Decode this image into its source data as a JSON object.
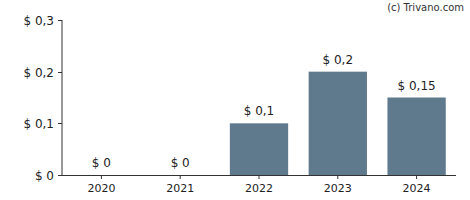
{
  "chart_data": {
    "type": "bar",
    "annotation": "(c) Trivano.com",
    "categories": [
      "2020",
      "2021",
      "2022",
      "2023",
      "2024"
    ],
    "values": [
      0,
      0,
      0.1,
      0.2,
      0.15
    ],
    "value_labels": [
      "$ 0",
      "$ 0",
      "$ 0,1",
      "$ 0,2",
      "$ 0,15"
    ],
    "data_labels": true,
    "color": "#5f7a8d",
    "ylim": [
      0,
      0.3
    ],
    "yticks": [
      {
        "value": 0,
        "label": "$ 0"
      },
      {
        "value": 0.1,
        "label": "$ 0,1"
      },
      {
        "value": 0.2,
        "label": "$ 0,2"
      },
      {
        "value": 0.3,
        "label": "$ 0,3"
      }
    ],
    "grid": false
  }
}
